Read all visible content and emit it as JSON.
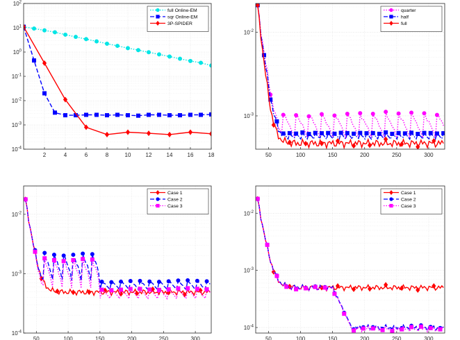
{
  "chart_data": [
    {
      "panel": "top-left",
      "type": "line",
      "yscale": "log",
      "xlim": [
        0,
        18
      ],
      "ylim": [
        0.0001,
        100
      ],
      "grid": true,
      "legend_position": "top-right",
      "x_ticks": [
        2,
        4,
        6,
        8,
        10,
        12,
        14,
        16,
        18
      ],
      "x_tick_labels": [
        "2",
        "4",
        "6",
        "8",
        "10",
        "12",
        "14",
        "16",
        "18"
      ],
      "y_ticks": [
        0.0001,
        0.001,
        0.01,
        0.1,
        1,
        10,
        100
      ],
      "y_tick_labels": [
        {
          "base": "10",
          "exp": "-4"
        },
        {
          "base": "10",
          "exp": "-3"
        },
        {
          "base": "10",
          "exp": "-2"
        },
        {
          "base": "10",
          "exp": "-1"
        },
        {
          "base": "10",
          "exp": "0"
        },
        {
          "base": "10",
          "exp": "1"
        },
        {
          "base": "10",
          "exp": "2"
        }
      ],
      "series": [
        {
          "name": "full Online-EM",
          "color": "#00e5e5",
          "dash": "dotted",
          "marker": "circle",
          "x": [
            0,
            1,
            2,
            3,
            4,
            5,
            6,
            7,
            8,
            9,
            10,
            11,
            12,
            13,
            14,
            15,
            16,
            17,
            18
          ],
          "y": [
            11,
            9.3,
            7.8,
            6.5,
            5.2,
            4.2,
            3.4,
            2.75,
            2.2,
            1.8,
            1.45,
            1.2,
            0.98,
            0.8,
            0.65,
            0.53,
            0.43,
            0.36,
            0.28
          ]
        },
        {
          "name": "sqr Online-EM",
          "color": "#0000ff",
          "dash": "dashed",
          "marker": "square",
          "x": [
            0,
            1,
            2,
            3,
            4,
            5,
            6,
            7,
            8,
            9,
            10,
            11,
            12,
            13,
            14,
            15,
            16,
            17,
            18
          ],
          "y": [
            11,
            0.45,
            0.02,
            0.0032,
            0.0025,
            0.0025,
            0.0026,
            0.0026,
            0.0025,
            0.0026,
            0.0025,
            0.0024,
            0.0026,
            0.0026,
            0.0025,
            0.0025,
            0.0026,
            0.0026,
            0.0027
          ]
        },
        {
          "name": "3P-SPIDER",
          "color": "#ff0000",
          "dash": "solid",
          "marker": "diamond",
          "x": [
            0,
            2,
            4,
            6,
            8,
            10,
            12,
            14,
            16,
            18
          ],
          "y": [
            11,
            0.35,
            0.011,
            0.0008,
            0.0004,
            0.0005,
            0.00045,
            0.0004,
            0.0005,
            0.00043
          ]
        }
      ]
    },
    {
      "panel": "top-right",
      "type": "line",
      "yscale": "log",
      "xlim": [
        30,
        325
      ],
      "ylim": [
        0.0004,
        0.022
      ],
      "grid": true,
      "legend_position": "top-right",
      "x_ticks": [
        50,
        100,
        150,
        200,
        250,
        300
      ],
      "x_tick_labels": [
        "50",
        "100",
        "150",
        "200",
        "250",
        "300"
      ],
      "y_ticks": [
        0.001,
        0.01
      ],
      "y_tick_labels": [
        {
          "base": "10",
          "exp": "-3"
        },
        {
          "base": "10",
          "exp": "-2"
        }
      ],
      "series": [
        {
          "name": "quarter",
          "color": "#ff00ff",
          "dash": "dotted",
          "marker": "circle",
          "marker_every": 8,
          "period": 8,
          "peak_rule": "sawtooth",
          "x_start": 33,
          "x_end": 323,
          "step": 2.5,
          "y_initial": 0.02,
          "y_plateau": 0.00048,
          "y_peak": 0.00105,
          "decay_rate": 0.13
        },
        {
          "name": "half",
          "color": "#0000ff",
          "dash": "dashdot",
          "marker": "square",
          "marker_every": 4,
          "period": 4,
          "peak_rule": "sawtooth",
          "x_start": 33,
          "x_end": 323,
          "step": 2.5,
          "y_initial": 0.02,
          "y_plateau": 0.0005,
          "y_peak": 0.00062,
          "decay_rate": 0.14
        },
        {
          "name": "full",
          "color": "#ff0000",
          "dash": "solid",
          "marker": "diamond",
          "marker_every": 10,
          "period": 0,
          "peak_rule": "none",
          "x_start": 33,
          "x_end": 323,
          "step": 2.5,
          "y_initial": 0.02,
          "y_plateau": 0.00047,
          "y_peak": 0.00047,
          "decay_rate": 0.16
        }
      ]
    },
    {
      "panel": "bottom-left",
      "type": "line",
      "yscale": "log",
      "xlim": [
        30,
        325
      ],
      "ylim": [
        0.0001,
        0.03
      ],
      "grid": true,
      "legend_position": "top-right",
      "x_ticks": [
        50,
        100,
        150,
        200,
        250,
        300
      ],
      "x_tick_labels": [
        "50",
        "100",
        "150",
        "200",
        "250",
        "300"
      ],
      "y_ticks": [
        0.0001,
        0.001,
        0.01
      ],
      "y_tick_labels": [
        {
          "base": "10",
          "exp": "-4"
        },
        {
          "base": "10",
          "exp": "-3"
        },
        {
          "base": "10",
          "exp": "-2"
        }
      ],
      "series": [
        {
          "name": "Case 1",
          "color": "#ff0000",
          "dash": "solid",
          "marker": "diamond",
          "marker_every": 10,
          "period": 0,
          "peak_rule": "none",
          "x_start": 33,
          "x_end": 323,
          "step": 2.5,
          "y_initial": 0.017,
          "y_plateau": 0.00049,
          "y_peak": 0.00049,
          "decay_rate": 0.15
        },
        {
          "name": "Case 2",
          "color": "#0000ff",
          "dash": "dashed",
          "marker": "circle",
          "marker_every": 6,
          "period": 6,
          "peak_rule": "two-stage",
          "stage_break": 150,
          "y_peak_stage2": 0.00075,
          "x_start": 33,
          "x_end": 323,
          "step": 2.5,
          "y_initial": 0.017,
          "y_plateau": 0.0005,
          "y_peak": 0.0021,
          "decay_rate": 0.15
        },
        {
          "name": "Case 3",
          "color": "#ff00ff",
          "dash": "dotted",
          "marker": "square",
          "marker_every": 6,
          "period": 6,
          "peak_rule": "two-stage",
          "stage_break": 150,
          "y_peak_stage2": 0.00055,
          "x_start": 33,
          "x_end": 323,
          "step": 2.5,
          "y_initial": 0.017,
          "y_plateau": 0.00035,
          "y_peak": 0.0017,
          "decay_rate": 0.15
        }
      ]
    },
    {
      "panel": "bottom-right",
      "type": "line",
      "yscale": "log",
      "xlim": [
        30,
        325
      ],
      "ylim": [
        8e-05,
        0.03
      ],
      "grid": true,
      "legend_position": "top-right",
      "x_ticks": [
        50,
        100,
        150,
        200,
        250,
        300
      ],
      "x_tick_labels": [
        "50",
        "100",
        "150",
        "200",
        "250",
        "300"
      ],
      "y_ticks": [
        0.0001,
        0.001,
        0.01
      ],
      "y_tick_labels": [
        {
          "base": "10",
          "exp": "-4"
        },
        {
          "base": "10",
          "exp": "-3"
        },
        {
          "base": "10",
          "exp": "-2"
        }
      ],
      "series": [
        {
          "name": "Case 1",
          "color": "#ff0000",
          "dash": "solid",
          "marker": "diamond",
          "marker_every": 10,
          "period": 0,
          "peak_rule": "none",
          "x_start": 33,
          "x_end": 323,
          "step": 2.5,
          "y_initial": 0.017,
          "y_plateau": 0.0005,
          "y_peak": 0.0005,
          "decay_rate": 0.14
        },
        {
          "name": "Case 2",
          "color": "#0000ff",
          "dash": "dashed",
          "marker": "circle",
          "marker_every": 6,
          "period": 0,
          "peak_rule": "drop",
          "drop_at": 150,
          "drop_end": 180,
          "y_after_drop": 0.0001,
          "x_start": 33,
          "x_end": 323,
          "step": 2.5,
          "y_initial": 0.017,
          "y_plateau": 0.0005,
          "y_peak": 0.0005,
          "decay_rate": 0.14
        },
        {
          "name": "Case 3",
          "color": "#ff00ff",
          "dash": "dotted",
          "marker": "square",
          "marker_every": 6,
          "period": 0,
          "peak_rule": "drop",
          "drop_at": 150,
          "drop_end": 180,
          "y_after_drop": 9.5e-05,
          "x_start": 33,
          "x_end": 323,
          "step": 2.5,
          "y_initial": 0.017,
          "y_plateau": 0.00049,
          "y_peak": 0.00049,
          "decay_rate": 0.14
        }
      ]
    }
  ]
}
